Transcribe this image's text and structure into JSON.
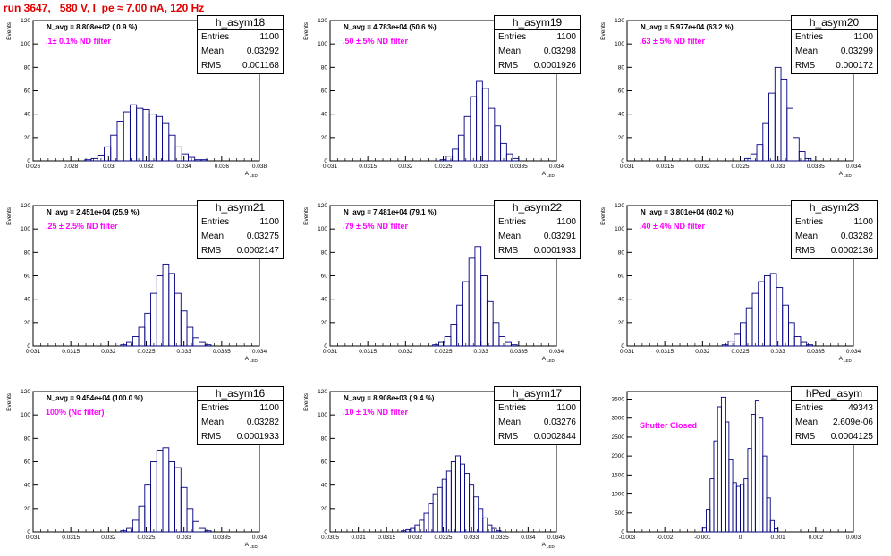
{
  "header": {
    "title": "run 3647,   580 V, I_pe ≈ 7.00 nA, 120 Hz"
  },
  "stat_labels": {
    "entries": "Entries",
    "mean": "Mean",
    "rms": "RMS"
  },
  "colors": {
    "histogram": "#000080",
    "title": "#e00000",
    "filter_text": "#ff00ff"
  },
  "chart_data": [
    {
      "type": "bar",
      "title": "h_asym18",
      "ylabel": "Events",
      "xlabel": "A",
      "xlabel_subscript": "LED",
      "n_avg": "N_avg = 8.808e+02 ( 0.9 %)",
      "filter": ".1± 0.1% ND filter",
      "stats": {
        "entries": "1100",
        "mean": "0.03292",
        "rms": "0.001168"
      },
      "xlim": [
        0.026,
        0.04
      ],
      "ylim": [
        0,
        120
      ],
      "xticks": [
        "0.026",
        "0.028",
        "0.03",
        "0.032",
        "0.034",
        "0.036",
        "0.038"
      ],
      "yticks": [
        "0",
        "20",
        "40",
        "60",
        "80",
        "100",
        "120"
      ],
      "bins": {
        "centers": [
          0.0294,
          0.0298,
          0.0302,
          0.0306,
          0.031,
          0.0314,
          0.0318,
          0.0322,
          0.0326,
          0.033,
          0.0334,
          0.0338,
          0.0342,
          0.0346,
          0.035,
          0.0354,
          0.0358,
          0.0362,
          0.0366
        ],
        "values": [
          1,
          2,
          5,
          12,
          22,
          34,
          42,
          48,
          45,
          44,
          40,
          38,
          32,
          22,
          12,
          6,
          3,
          1,
          1
        ]
      }
    },
    {
      "type": "bar",
      "title": "h_asym19",
      "ylabel": "Events",
      "xlabel": "A",
      "xlabel_subscript": "LED",
      "n_avg": "N_avg = 4.783e+04 (50.6 %)",
      "filter": ".50 ± 5% ND filter",
      "stats": {
        "entries": "1100",
        "mean": "0.03298",
        "rms": "0.0001926"
      },
      "xlim": [
        0.031,
        0.034
      ],
      "ylim": [
        0,
        120
      ],
      "xticks": [
        "0.031",
        "0.0315",
        "0.032",
        "0.0325",
        "0.033",
        "0.0335",
        "0.034"
      ],
      "yticks": [
        "0",
        "20",
        "40",
        "60",
        "80",
        "100",
        "120"
      ],
      "bins": {
        "centers": [
          0.0325,
          0.03258,
          0.03266,
          0.03274,
          0.03282,
          0.0329,
          0.03298,
          0.03306,
          0.03314,
          0.03322,
          0.0333,
          0.03338,
          0.03346
        ],
        "values": [
          1,
          4,
          10,
          22,
          38,
          55,
          68,
          62,
          45,
          30,
          15,
          6,
          2
        ]
      }
    },
    {
      "type": "bar",
      "title": "h_asym20",
      "ylabel": "Events",
      "xlabel": "A",
      "xlabel_subscript": "LED",
      "n_avg": "N_avg = 5.977e+04 (63.2 %)",
      "filter": ".63 ± 5% ND filter",
      "stats": {
        "entries": "1100",
        "mean": "0.03299",
        "rms": "0.000172"
      },
      "xlim": [
        0.031,
        0.034
      ],
      "ylim": [
        0,
        120
      ],
      "xticks": [
        "0.031",
        "0.0315",
        "0.032",
        "0.0325",
        "0.033",
        "0.0335",
        "0.034"
      ],
      "yticks": [
        "0",
        "20",
        "40",
        "60",
        "80",
        "100",
        "120"
      ],
      "bins": {
        "centers": [
          0.0326,
          0.03268,
          0.03276,
          0.03284,
          0.03292,
          0.033,
          0.03308,
          0.03316,
          0.03324,
          0.03332,
          0.0334
        ],
        "values": [
          2,
          6,
          14,
          32,
          58,
          80,
          70,
          45,
          20,
          8,
          2
        ]
      }
    },
    {
      "type": "bar",
      "title": "h_asym21",
      "ylabel": "Events",
      "xlabel": "A",
      "xlabel_subscript": "LED",
      "n_avg": "N_avg = 2.451e+04 (25.9 %)",
      "filter": ".25 ± 2.5% ND filter",
      "stats": {
        "entries": "1100",
        "mean": "0.03275",
        "rms": "0.0002147"
      },
      "xlim": [
        0.031,
        0.034
      ],
      "ylim": [
        0,
        120
      ],
      "xticks": [
        "0.031",
        "0.0315",
        "0.032",
        "0.0325",
        "0.033",
        "0.0335",
        "0.034"
      ],
      "yticks": [
        "0",
        "20",
        "40",
        "60",
        "80",
        "100",
        "120"
      ],
      "bins": {
        "centers": [
          0.0322,
          0.03228,
          0.03236,
          0.03244,
          0.03252,
          0.0326,
          0.03268,
          0.03276,
          0.03284,
          0.03292,
          0.033,
          0.03308,
          0.03316,
          0.03324,
          0.03332
        ],
        "values": [
          1,
          3,
          8,
          16,
          28,
          45,
          60,
          70,
          62,
          45,
          30,
          16,
          7,
          3,
          1
        ]
      }
    },
    {
      "type": "bar",
      "title": "h_asym22",
      "ylabel": "Events",
      "xlabel": "A",
      "xlabel_subscript": "LED",
      "n_avg": "N_avg = 7.481e+04 (79.1 %)",
      "filter": ".79 ± 5% ND filter",
      "stats": {
        "entries": "1100",
        "mean": "0.03291",
        "rms": "0.0001933"
      },
      "xlim": [
        0.031,
        0.034
      ],
      "ylim": [
        0,
        120
      ],
      "xticks": [
        "0.031",
        "0.0315",
        "0.032",
        "0.0325",
        "0.033",
        "0.0335",
        "0.034"
      ],
      "yticks": [
        "0",
        "20",
        "40",
        "60",
        "80",
        "100",
        "120"
      ],
      "bins": {
        "centers": [
          0.0324,
          0.03248,
          0.03256,
          0.03264,
          0.03272,
          0.0328,
          0.03288,
          0.03296,
          0.03304,
          0.03312,
          0.0332,
          0.03328,
          0.03336,
          0.03344
        ],
        "values": [
          1,
          3,
          8,
          18,
          35,
          55,
          75,
          85,
          60,
          38,
          20,
          8,
          3,
          1
        ]
      }
    },
    {
      "type": "bar",
      "title": "h_asym23",
      "ylabel": "Events",
      "xlabel": "A",
      "xlabel_subscript": "LED",
      "n_avg": "N_avg = 3.801e+04 (40.2 %)",
      "filter": ".40 ± 4% ND filter",
      "stats": {
        "entries": "1100",
        "mean": "0.03282",
        "rms": "0.0002136"
      },
      "xlim": [
        0.031,
        0.034
      ],
      "ylim": [
        0,
        120
      ],
      "xticks": [
        "0.031",
        "0.0315",
        "0.032",
        "0.0325",
        "0.033",
        "0.0335",
        "0.034"
      ],
      "yticks": [
        "0",
        "20",
        "40",
        "60",
        "80",
        "100",
        "120"
      ],
      "bins": {
        "centers": [
          0.0323,
          0.03238,
          0.03246,
          0.03254,
          0.03262,
          0.0327,
          0.03278,
          0.03286,
          0.03294,
          0.03302,
          0.0331,
          0.03318,
          0.03326,
          0.03334,
          0.03342
        ],
        "values": [
          1,
          4,
          10,
          20,
          32,
          45,
          55,
          60,
          62,
          50,
          35,
          20,
          8,
          3,
          1
        ]
      }
    },
    {
      "type": "bar",
      "title": "h_asym16",
      "ylabel": "Events",
      "xlabel": "A",
      "xlabel_subscript": "LED",
      "n_avg": "N_avg = 9.454e+04 (100.0 %)",
      "filter": "100% (No filter)",
      "stats": {
        "entries": "1100",
        "mean": "0.03282",
        "rms": "0.0001933"
      },
      "xlim": [
        0.031,
        0.034
      ],
      "ylim": [
        0,
        120
      ],
      "xticks": [
        "0.031",
        "0.0315",
        "0.032",
        "0.0325",
        "0.033",
        "0.0335",
        "0.034"
      ],
      "yticks": [
        "0",
        "20",
        "40",
        "60",
        "80",
        "100",
        "120"
      ],
      "bins": {
        "centers": [
          0.0322,
          0.03228,
          0.03236,
          0.03244,
          0.03252,
          0.0326,
          0.03268,
          0.03276,
          0.03284,
          0.03292,
          0.033,
          0.03308,
          0.03316,
          0.03324,
          0.03332
        ],
        "values": [
          1,
          3,
          10,
          22,
          40,
          60,
          70,
          72,
          60,
          55,
          38,
          20,
          9,
          3,
          1
        ]
      }
    },
    {
      "type": "bar",
      "title": "h_asym17",
      "ylabel": "Events",
      "xlabel": "A",
      "xlabel_subscript": "LED",
      "n_avg": "N_avg = 8.908e+03 ( 9.4 %)",
      "filter": ".10 ± 1% ND filter",
      "stats": {
        "entries": "1100",
        "mean": "0.03276",
        "rms": "0.0002844"
      },
      "xlim": [
        0.0305,
        0.0345
      ],
      "ylim": [
        0,
        120
      ],
      "xticks": [
        "0.0305",
        "0.031",
        "0.0315",
        "0.032",
        "0.0325",
        "0.033",
        "0.0335",
        "0.034",
        "0.0345"
      ],
      "yticks": [
        "0",
        "20",
        "40",
        "60",
        "80",
        "100",
        "120"
      ],
      "bins": {
        "centers": [
          0.0318,
          0.03188,
          0.03196,
          0.03204,
          0.03212,
          0.0322,
          0.03228,
          0.03236,
          0.03244,
          0.03252,
          0.0326,
          0.03268,
          0.03276,
          0.03284,
          0.03292,
          0.033,
          0.03308,
          0.03316,
          0.03324,
          0.03332,
          0.0334,
          0.03348
        ],
        "values": [
          1,
          2,
          3,
          6,
          10,
          16,
          24,
          32,
          38,
          45,
          52,
          60,
          65,
          58,
          50,
          40,
          30,
          20,
          12,
          6,
          3,
          1
        ]
      }
    },
    {
      "type": "bar",
      "title": "hPed_asym",
      "ylabel": "",
      "xlabel": "",
      "xlabel_subscript": "",
      "n_avg": "",
      "filter": "Shutter Closed",
      "stats": {
        "entries": "49343",
        "mean": "2.609e-06",
        "rms": "0.0004125"
      },
      "xlim": [
        -0.003,
        0.003
      ],
      "ylim": [
        0,
        3700
      ],
      "xticks": [
        "-0.003",
        "-0.002",
        "-0.001",
        "0",
        "0.001",
        "0.002",
        "0.003"
      ],
      "yticks": [
        "0",
        "500",
        "1000",
        "1500",
        "2000",
        "2500",
        "3000",
        "3500"
      ],
      "bins": {
        "centers": [
          -0.00095,
          -0.00085,
          -0.00075,
          -0.00065,
          -0.00055,
          -0.00045,
          -0.00035,
          -0.00025,
          -0.00015,
          -5e-05,
          5e-05,
          0.00015,
          0.00025,
          0.00035,
          0.00045,
          0.00055,
          0.00065,
          0.00075,
          0.00085,
          0.00095
        ],
        "values": [
          100,
          600,
          1400,
          2400,
          3300,
          3550,
          2900,
          1900,
          1300,
          1200,
          1250,
          1400,
          2200,
          3100,
          3450,
          3000,
          2000,
          900,
          300,
          80
        ]
      }
    }
  ]
}
